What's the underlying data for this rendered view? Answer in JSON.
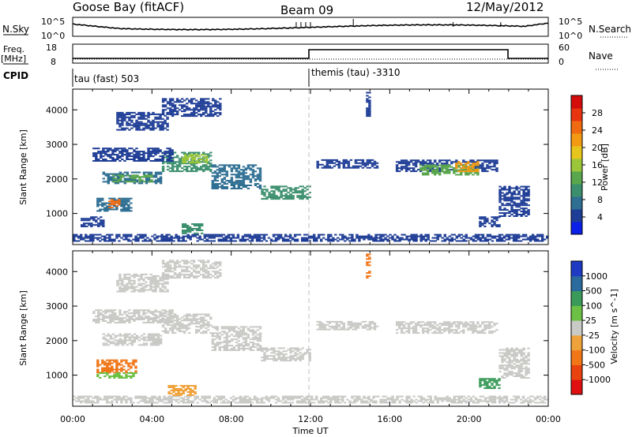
{
  "header": {
    "station": "Goose Bay (fitACF)",
    "beam": "Beam 09",
    "date": "12/May/2012"
  },
  "noise_panel": {
    "left_label": "N.Sky",
    "left_ticks": [
      "10^5",
      "10^0"
    ],
    "right_label": "N.Search",
    "right_ticks": [
      "10^5",
      "10^0"
    ]
  },
  "freq_panel": {
    "left_label_top": "Freq.",
    "left_label_bottom": "[MHz]",
    "left_ticks": [
      "18",
      "8"
    ],
    "right_label": "Nave",
    "right_ticks": [
      "60",
      "0"
    ]
  },
  "cpid": {
    "label": "CPID",
    "mode1": "tau (fast) 503",
    "mode2": "themis (tau) -3310"
  },
  "chart_data": [
    {
      "type": "heatmap",
      "name": "power",
      "ylabel": "Slant Range [km]",
      "y_ticks": [
        "1000",
        "2000",
        "3000",
        "4000"
      ],
      "colorbar_label": "Power [dB]",
      "colorbar_ticks": [
        "4",
        "8",
        "12",
        "16",
        "20",
        "24",
        "28"
      ],
      "colorbar_colors": [
        "#0a1fe8",
        "#1e3d96",
        "#2f6f93",
        "#3b8f6e",
        "#5aa64c",
        "#9bc639",
        "#e6c51c",
        "#f29a14",
        "#f06a12",
        "#e8350f",
        "#d40c0c"
      ],
      "bands": [
        {
          "t0": 0.4,
          "t1": 1.6,
          "r0": 600,
          "r1": 900,
          "color": "#1e3d96"
        },
        {
          "t0": 1.2,
          "t1": 3.0,
          "r0": 1050,
          "r1": 1450,
          "color": "#2f6f93"
        },
        {
          "t0": 1.8,
          "t1": 2.3,
          "r0": 1150,
          "r1": 1400,
          "color": "#f06a12"
        },
        {
          "t0": 1.5,
          "t1": 4.5,
          "r0": 1850,
          "r1": 2200,
          "color": "#2f6f93"
        },
        {
          "t0": 2.0,
          "t1": 4.0,
          "r0": 1900,
          "r1": 2100,
          "color": "#5aa64c"
        },
        {
          "t0": 4.5,
          "t1": 7.0,
          "r0": 2200,
          "r1": 2750,
          "color": "#3b8f6e"
        },
        {
          "t0": 5.5,
          "t1": 6.8,
          "r0": 2450,
          "r1": 2700,
          "color": "#9bc639"
        },
        {
          "t0": 7.0,
          "t1": 9.5,
          "r0": 1700,
          "r1": 2400,
          "color": "#2f6f93"
        },
        {
          "t0": 9.5,
          "t1": 11.9,
          "r0": 1400,
          "r1": 1800,
          "color": "#3b8f6e"
        },
        {
          "t0": 2.2,
          "t1": 4.8,
          "r0": 3400,
          "r1": 3900,
          "color": "#1e3d96"
        },
        {
          "t0": 4.5,
          "t1": 7.5,
          "r0": 3800,
          "r1": 4300,
          "color": "#1e3d96"
        },
        {
          "t0": 1.0,
          "t1": 5.0,
          "r0": 2500,
          "r1": 2900,
          "color": "#1e3d96"
        },
        {
          "t0": 0.0,
          "t1": 24.0,
          "r0": 180,
          "r1": 380,
          "color": "#1e3d96"
        },
        {
          "t0": 5.5,
          "t1": 6.5,
          "r0": 400,
          "r1": 700,
          "color": "#3b8f6e"
        },
        {
          "t0": 12.3,
          "t1": 15.3,
          "r0": 2300,
          "r1": 2550,
          "color": "#1e3d96"
        },
        {
          "t0": 16.3,
          "t1": 21.4,
          "r0": 2200,
          "r1": 2550,
          "color": "#1e3d96"
        },
        {
          "t0": 17.5,
          "t1": 20.5,
          "r0": 2100,
          "r1": 2400,
          "color": "#5aa64c"
        },
        {
          "t0": 19.3,
          "t1": 20.5,
          "r0": 2200,
          "r1": 2500,
          "color": "#f29a14"
        },
        {
          "t0": 21.5,
          "t1": 23.0,
          "r0": 900,
          "r1": 1800,
          "color": "#1e3d96"
        },
        {
          "t0": 20.5,
          "t1": 21.5,
          "r0": 600,
          "r1": 900,
          "color": "#1e3d96"
        },
        {
          "t0": 14.8,
          "t1": 15.0,
          "r0": 3800,
          "r1": 4500,
          "color": "#1e3d96"
        }
      ]
    },
    {
      "type": "heatmap",
      "name": "velocity",
      "ylabel": "Slant Range [km]",
      "y_ticks": [
        "1000",
        "2000",
        "3000",
        "4000"
      ],
      "colorbar_label": "Velocity [m s^-1]",
      "colorbar_ticks": [
        "1000",
        "500",
        "100",
        "25",
        "-25",
        "-100",
        "-500",
        "-1000"
      ],
      "colorbar_colors": [
        "#1f3bc4",
        "#2a6a9c",
        "#3a9a5a",
        "#6cc043",
        "#c9c9c6",
        "#f0a23a",
        "#f07618",
        "#e8420f",
        "#e01010"
      ],
      "bands": [
        {
          "t0": 1.5,
          "t1": 4.5,
          "r0": 1850,
          "r1": 2200,
          "color": "#c9c9c6"
        },
        {
          "t0": 4.5,
          "t1": 7.0,
          "r0": 2200,
          "r1": 2750,
          "color": "#c9c9c6"
        },
        {
          "t0": 7.0,
          "t1": 9.5,
          "r0": 1700,
          "r1": 2400,
          "color": "#c9c9c6"
        },
        {
          "t0": 9.5,
          "t1": 11.9,
          "r0": 1400,
          "r1": 1800,
          "color": "#c9c9c6"
        },
        {
          "t0": 1.2,
          "t1": 3.2,
          "r0": 1050,
          "r1": 1450,
          "color": "#f07618"
        },
        {
          "t0": 1.2,
          "t1": 3.2,
          "r0": 900,
          "r1": 1050,
          "color": "#6cc043"
        },
        {
          "t0": 2.2,
          "t1": 4.8,
          "r0": 3400,
          "r1": 3900,
          "color": "#c9c9c6"
        },
        {
          "t0": 4.5,
          "t1": 7.5,
          "r0": 3800,
          "r1": 4300,
          "color": "#c9c9c6"
        },
        {
          "t0": 1.0,
          "t1": 5.0,
          "r0": 2500,
          "r1": 2900,
          "color": "#c9c9c6"
        },
        {
          "t0": 0.0,
          "t1": 24.0,
          "r0": 180,
          "r1": 380,
          "color": "#c9c9c6"
        },
        {
          "t0": 4.8,
          "t1": 6.2,
          "r0": 400,
          "r1": 700,
          "color": "#f0a23a"
        },
        {
          "t0": 12.3,
          "t1": 15.3,
          "r0": 2300,
          "r1": 2550,
          "color": "#c9c9c6"
        },
        {
          "t0": 16.3,
          "t1": 21.4,
          "r0": 2200,
          "r1": 2550,
          "color": "#c9c9c6"
        },
        {
          "t0": 21.5,
          "t1": 23.0,
          "r0": 900,
          "r1": 1800,
          "color": "#c9c9c6"
        },
        {
          "t0": 20.5,
          "t1": 21.5,
          "r0": 600,
          "r1": 900,
          "color": "#3a9a5a"
        },
        {
          "t0": 14.8,
          "t1": 15.0,
          "r0": 3800,
          "r1": 4500,
          "color": "#f07618"
        }
      ]
    }
  ],
  "x_axis": {
    "ticks": [
      "00:00",
      "04:00",
      "08:00",
      "12:00",
      "16:00",
      "20:00",
      "00:00"
    ],
    "xlabel": "Time UT"
  }
}
